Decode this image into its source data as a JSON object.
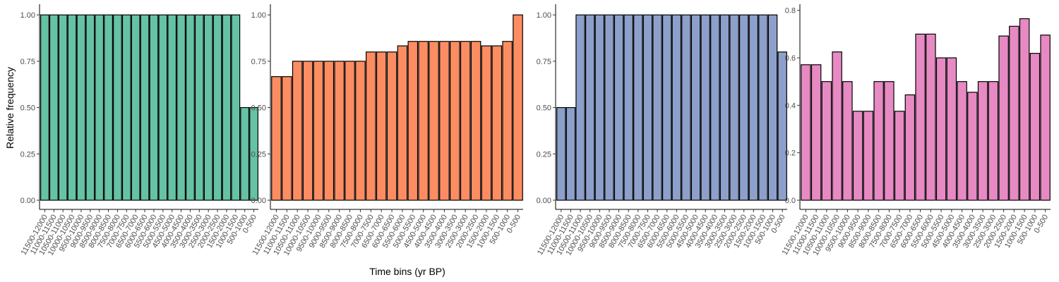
{
  "figure": {
    "ylabel": "Relative frequency",
    "xlabel": "Time bins (yr BP)"
  },
  "chart_data": [
    {
      "type": "bar",
      "categories": [
        "11500-12000",
        "11000-11500",
        "10500-11000",
        "10000-10500",
        "9500-10000",
        "9000-9500",
        "8500-9000",
        "8000-8500",
        "7500-8000",
        "7000-7500",
        "6500-7000",
        "6000-6500",
        "5500-6000",
        "5000-5500",
        "4500-5000",
        "4000-4500",
        "3500-4000",
        "3000-3500",
        "2500-3000",
        "2000-2500",
        "1500-2000",
        "1000-1500",
        "500-1000",
        "0-500"
      ],
      "values": [
        1,
        1,
        1,
        1,
        1,
        1,
        1,
        1,
        1,
        1,
        1,
        1,
        1,
        1,
        1,
        1,
        1,
        1,
        1,
        1,
        1,
        1,
        0.5,
        0.5
      ],
      "ylim": [
        0,
        1.05
      ],
      "yticks": [
        0,
        0.25,
        0.5,
        0.75,
        1
      ],
      "ytick_labels": [
        "0.00",
        "0.25",
        "0.50",
        "0.75",
        "1.00"
      ],
      "color": "#66c2a5",
      "grid": false
    },
    {
      "type": "bar",
      "categories": [
        "11500-12000",
        "11000-11500",
        "10500-11000",
        "10000-10500",
        "9500-10000",
        "9000-9500",
        "8500-9000",
        "8000-8500",
        "7500-8000",
        "7000-7500",
        "6500-7000",
        "6000-6500",
        "5500-6000",
        "5000-5500",
        "4500-5000",
        "4000-4500",
        "3500-4000",
        "3000-3500",
        "2500-3000",
        "2000-2500",
        "1500-2000",
        "1000-1500",
        "500-1000",
        "0-500"
      ],
      "values": [
        0.667,
        0.667,
        0.75,
        0.75,
        0.75,
        0.75,
        0.75,
        0.75,
        0.75,
        0.8,
        0.8,
        0.8,
        0.833,
        0.857,
        0.857,
        0.857,
        0.857,
        0.857,
        0.857,
        0.857,
        0.833,
        0.833,
        0.857,
        1
      ],
      "ylim": [
        0,
        1.05
      ],
      "yticks": [
        0,
        0.25,
        0.5,
        0.75,
        1
      ],
      "ytick_labels": [
        "0.00",
        "0.25",
        "0.50",
        "0.75",
        "1.00"
      ],
      "color": "#fc8d62",
      "grid": false
    },
    {
      "type": "bar",
      "categories": [
        "11500-12000",
        "11000-11500",
        "10500-11000",
        "10000-10500",
        "9500-10000",
        "9000-9500",
        "8500-9000",
        "8000-8500",
        "7500-8000",
        "7000-7500",
        "6500-7000",
        "6000-6500",
        "5500-6000",
        "5000-5500",
        "4500-5000",
        "4000-4500",
        "3500-4000",
        "3000-3500",
        "2500-3000",
        "2000-2500",
        "1500-2000",
        "1000-1500",
        "500-1000",
        "0-500"
      ],
      "values": [
        0.5,
        0.5,
        1,
        1,
        1,
        1,
        1,
        1,
        1,
        1,
        1,
        1,
        1,
        1,
        1,
        1,
        1,
        1,
        1,
        1,
        1,
        1,
        1,
        0.8
      ],
      "ylim": [
        0,
        1.05
      ],
      "yticks": [
        0,
        0.25,
        0.5,
        0.75,
        1
      ],
      "ytick_labels": [
        "0.00",
        "0.25",
        "0.50",
        "0.75",
        "1.00"
      ],
      "color": "#8da0cb",
      "grid": false
    },
    {
      "type": "bar",
      "categories": [
        "11500-12000",
        "11000-11500",
        "10500-11000",
        "10000-10500",
        "9500-10000",
        "9000-9500",
        "8500-9000",
        "8000-8500",
        "7500-8000",
        "7000-7500",
        "6500-7000",
        "6000-6500",
        "5500-6000",
        "5000-5500",
        "4500-5000",
        "4000-4500",
        "3500-4000",
        "3000-3500",
        "2500-3000",
        "2000-2500",
        "1500-2000",
        "1000-1500",
        "500-1000",
        "0-500"
      ],
      "values": [
        0.571,
        0.571,
        0.5,
        0.625,
        0.5,
        0.375,
        0.375,
        0.5,
        0.5,
        0.375,
        0.444,
        0.7,
        0.7,
        0.6,
        0.6,
        0.5,
        0.455,
        0.5,
        0.5,
        0.692,
        0.733,
        0.765,
        0.619,
        0.696
      ],
      "ylim": [
        0,
        0.82
      ],
      "yticks": [
        0,
        0.2,
        0.4,
        0.6,
        0.8
      ],
      "ytick_labels": [
        "0.0",
        "0.2",
        "0.4",
        "0.6",
        "0.8"
      ],
      "color": "#e78ac3",
      "grid": false
    }
  ]
}
